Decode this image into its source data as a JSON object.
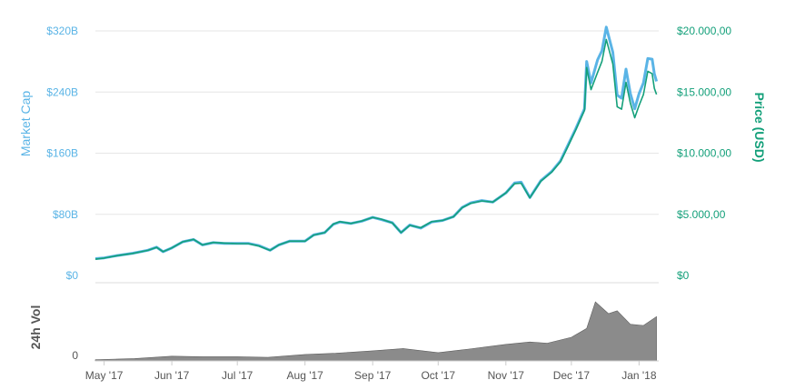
{
  "colors": {
    "market_cap": "#5ab4e6",
    "price": "#14a07a",
    "volume": "#777777",
    "grid": "#e6e6e6",
    "axis_text_muted": "#555555"
  },
  "chart_data": [
    {
      "type": "line",
      "title": "",
      "x_axis": {
        "ticks": [
          "May '17",
          "Jun '17",
          "Jul '17",
          "Aug '17",
          "Sep '17",
          "Oct '17",
          "Nov '17",
          "Dec '17",
          "Jan '18"
        ],
        "range": [
          "2017-04-27",
          "2018-01-10"
        ]
      },
      "left_axis": {
        "label": "Market Cap",
        "ticks": [
          "$0",
          "$80B",
          "$160B",
          "$240B",
          "$320B"
        ],
        "ylim": [
          0,
          320
        ]
      },
      "right_axis": {
        "label": "Price (USD)",
        "ticks": [
          "$0",
          "$5.000,00",
          "$10.000,00",
          "$15.000,00",
          "$20.000,00"
        ],
        "ylim": [
          0,
          20000
        ]
      },
      "grid": true,
      "x": [
        "2017-04-27",
        "2017-05-01",
        "2017-05-07",
        "2017-05-14",
        "2017-05-21",
        "2017-05-25",
        "2017-05-28",
        "2017-06-01",
        "2017-06-06",
        "2017-06-11",
        "2017-06-15",
        "2017-06-20",
        "2017-06-25",
        "2017-07-01",
        "2017-07-06",
        "2017-07-11",
        "2017-07-16",
        "2017-07-20",
        "2017-07-25",
        "2017-08-01",
        "2017-08-05",
        "2017-08-10",
        "2017-08-14",
        "2017-08-17",
        "2017-08-22",
        "2017-08-27",
        "2017-09-01",
        "2017-09-05",
        "2017-09-10",
        "2017-09-14",
        "2017-09-18",
        "2017-09-23",
        "2017-09-28",
        "2017-10-03",
        "2017-10-08",
        "2017-10-12",
        "2017-10-16",
        "2017-10-21",
        "2017-10-26",
        "2017-11-01",
        "2017-11-05",
        "2017-11-08",
        "2017-11-12",
        "2017-11-17",
        "2017-11-22",
        "2017-11-26",
        "2017-11-29",
        "2017-12-03",
        "2017-12-07",
        "2017-12-08",
        "2017-12-10",
        "2017-12-13",
        "2017-12-15",
        "2017-12-17",
        "2017-12-20",
        "2017-12-22",
        "2017-12-24",
        "2017-12-26",
        "2017-12-28",
        "2017-12-30",
        "2018-01-01",
        "2018-01-03",
        "2018-01-05",
        "2018-01-07",
        "2018-01-08",
        "2018-01-09"
      ],
      "series": [
        {
          "name": "Market Cap",
          "axis": "left",
          "values": [
            22,
            23,
            26,
            29,
            33,
            37,
            31,
            36,
            44,
            47,
            40,
            43,
            42,
            42,
            42,
            39,
            33,
            40,
            45,
            45,
            53,
            56,
            67,
            70,
            68,
            71,
            76,
            73,
            69,
            56,
            66,
            62,
            70,
            72,
            77,
            89,
            95,
            98,
            96,
            108,
            121,
            122,
            102,
            124,
            136,
            150,
            168,
            192,
            218,
            280,
            252,
            282,
            294,
            325,
            292,
            236,
            232,
            270,
            238,
            218,
            238,
            252,
            284,
            283,
            264,
            254
          ]
        },
        {
          "name": "Price (USD)",
          "axis": "right",
          "values": [
            1330,
            1420,
            1620,
            1800,
            2050,
            2300,
            1950,
            2250,
            2750,
            2950,
            2500,
            2700,
            2650,
            2600,
            2600,
            2400,
            2050,
            2500,
            2800,
            2800,
            3300,
            3500,
            4200,
            4400,
            4250,
            4450,
            4750,
            4600,
            4300,
            3500,
            4100,
            3900,
            4400,
            4500,
            4800,
            5550,
            5900,
            6100,
            6000,
            6750,
            7500,
            7550,
            6350,
            7700,
            8450,
            9300,
            10400,
            11900,
            13500,
            17000,
            15200,
            16600,
            17500,
            19300,
            17300,
            13800,
            13600,
            15800,
            14100,
            12900,
            13900,
            14800,
            16700,
            16500,
            15300,
            14800
          ]
        }
      ]
    },
    {
      "type": "area",
      "title": "",
      "y_axis": {
        "label": "24h Vol",
        "ticks": [
          "0"
        ]
      },
      "x": [
        "2017-04-27",
        "2017-05-15",
        "2017-06-01",
        "2017-06-15",
        "2017-07-01",
        "2017-07-15",
        "2017-08-01",
        "2017-08-15",
        "2017-09-01",
        "2017-09-15",
        "2017-10-01",
        "2017-10-15",
        "2017-11-01",
        "2017-11-12",
        "2017-11-20",
        "2017-12-01",
        "2017-12-08",
        "2017-12-12",
        "2017-12-18",
        "2017-12-22",
        "2017-12-28",
        "2018-01-03",
        "2018-01-09"
      ],
      "series": [
        {
          "name": "24h Vol",
          "values": [
            0.02,
            0.04,
            0.08,
            0.07,
            0.07,
            0.06,
            0.11,
            0.13,
            0.17,
            0.21,
            0.14,
            0.2,
            0.28,
            0.32,
            0.3,
            0.4,
            0.55,
            1.0,
            0.8,
            0.85,
            0.62,
            0.6,
            0.75
          ]
        }
      ]
    }
  ]
}
